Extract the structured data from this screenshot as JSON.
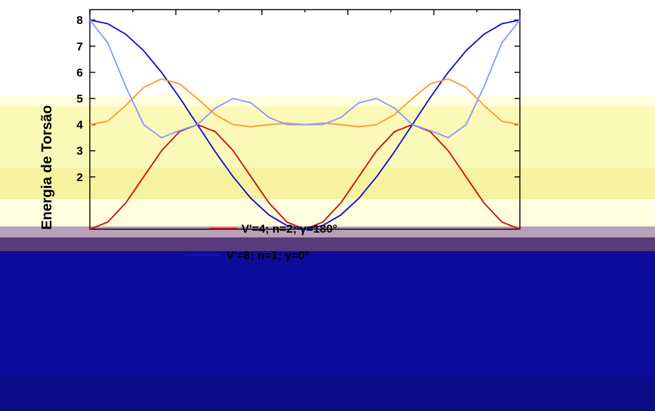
{
  "chart_data": {
    "type": "line",
    "ylabel": "Energia de Torsão",
    "ylim": [
      0,
      8.4
    ],
    "yticks": [
      2,
      3,
      4,
      5,
      6,
      7,
      8
    ],
    "xlim": [
      -180,
      180
    ],
    "grid": false,
    "legend_placement": "bottom-center",
    "series": [
      {
        "label": "V'=4; n=2; γ=180°",
        "color": "#cc1111",
        "x": [
          -180,
          -165,
          -150,
          -135,
          -120,
          -105,
          -90,
          -75,
          -60,
          -45,
          -30,
          -15,
          0,
          15,
          30,
          45,
          60,
          75,
          90,
          105,
          120,
          135,
          150,
          165,
          180
        ],
        "y": [
          0.0,
          0.27,
          1.0,
          2.0,
          3.0,
          3.73,
          4.0,
          3.73,
          3.0,
          2.0,
          1.0,
          0.27,
          0.0,
          0.27,
          1.0,
          2.0,
          3.0,
          3.73,
          4.0,
          3.73,
          3.0,
          2.0,
          1.0,
          0.27,
          0.0
        ]
      },
      {
        "label": "V'=8; n=1; γ=0°",
        "color": "#1111cc",
        "x": [
          -180,
          -165,
          -150,
          -135,
          -120,
          -105,
          -90,
          -75,
          -60,
          -45,
          -30,
          -15,
          0,
          15,
          30,
          45,
          60,
          75,
          90,
          105,
          120,
          135,
          150,
          165,
          180
        ],
        "y": [
          8.0,
          7.86,
          7.46,
          6.83,
          6.0,
          5.04,
          4.0,
          2.96,
          2.0,
          1.17,
          0.54,
          0.14,
          0.0,
          0.14,
          0.54,
          1.17,
          2.0,
          2.96,
          4.0,
          5.04,
          6.0,
          6.83,
          7.46,
          7.86,
          8.0
        ]
      },
      {
        "label": "",
        "color": "#ff9a33",
        "x": [
          -180,
          -165,
          -150,
          -135,
          -120,
          -105,
          -90,
          -75,
          -60,
          -45,
          -30,
          -15,
          0,
          15,
          30,
          45,
          60,
          75,
          90,
          105,
          120,
          135,
          150,
          165,
          180
        ],
        "y": [
          4.0,
          4.13,
          4.73,
          5.42,
          5.75,
          5.56,
          5.0,
          4.38,
          4.0,
          3.92,
          4.0,
          4.06,
          4.0,
          4.06,
          4.0,
          3.92,
          4.0,
          4.38,
          5.0,
          5.56,
          5.75,
          5.42,
          4.73,
          4.13,
          4.0
        ]
      },
      {
        "label": "",
        "color": "#8899ff",
        "x": [
          -180,
          -165,
          -150,
          -135,
          -120,
          -105,
          -90,
          -75,
          -60,
          -45,
          -30,
          -15,
          0,
          15,
          30,
          45,
          60,
          75,
          90,
          105,
          120,
          135,
          150,
          165,
          180
        ],
        "y": [
          8.0,
          7.13,
          5.46,
          4.0,
          3.5,
          3.77,
          4.0,
          4.63,
          5.0,
          4.83,
          4.27,
          4.0,
          4.0,
          4.0,
          4.27,
          4.83,
          5.0,
          4.63,
          4.0,
          3.77,
          3.5,
          4.0,
          5.46,
          7.13,
          8.0
        ]
      }
    ]
  }
}
